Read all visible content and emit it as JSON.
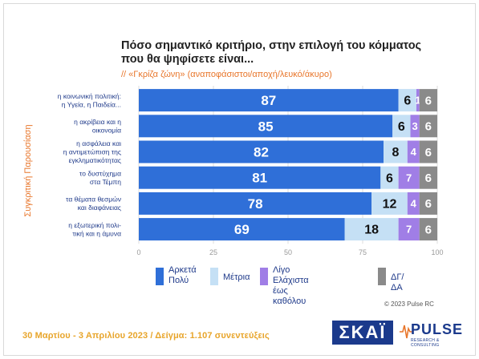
{
  "title": "Πόσο σημαντικό κριτήριο, στην επιλογή του κόμματος που θα ψηφίσετε είναι...",
  "subtitle": "// «Γκρίζα ζώνη» (αναποφάσιστοι/αποχή/λευκό/άκυρο)",
  "side_label": "Συγκριτική Παρουσίαση",
  "copyright": "© 2023 Pulse RC",
  "footer": "30 Μαρτίου - 3 Απριλίου 2023 / Δείγμα: 1.107 συνεντεύξεις",
  "logos": {
    "skai": "ΣΚΑΪ",
    "pulse": "PULSE",
    "pulse_sub": "RESEARCH & CONSULTING"
  },
  "colors": {
    "arketa": "#2f6fd8",
    "metria": "#c5e0f5",
    "ligo": "#a07ee6",
    "dgda": "#8a8a8a",
    "title": "#222222",
    "accent": "#e8762b",
    "footer": "#e8a52b",
    "legend_text": "#1f3a8a"
  },
  "legend": [
    {
      "label": "Αρκετά\nΠολύ",
      "color": "#2f6fd8"
    },
    {
      "label": "Μέτρια",
      "color": "#c5e0f5"
    },
    {
      "label": "Λίγο\nΕλάχιστα έως καθόλου",
      "color": "#a07ee6"
    },
    {
      "label": "ΔΓ/ΔΑ",
      "color": "#8a8a8a"
    }
  ],
  "chart_data": {
    "type": "bar",
    "orientation": "horizontal",
    "stacked": true,
    "categories": [
      "η κοινωνική πολιτική:\nη Υγεία, η Παιδεία...",
      "η ακρίβεια και η\nοικονομία",
      "η ασφάλεια και\nη αντιμετώπιση της\nεγκληματικότητας",
      "το δυστύχημα\nστα Τέμπη",
      "τα θέματα θεσμών\nκαι διαφάνειας",
      "η εξωτερική πολι-\nτική και η άμυνα"
    ],
    "series": [
      {
        "name": "Αρκετά Πολύ",
        "values": [
          87,
          85,
          82,
          81,
          78,
          69
        ]
      },
      {
        "name": "Μέτρια",
        "values": [
          6,
          6,
          8,
          6,
          12,
          18
        ]
      },
      {
        "name": "Λίγο Ελάχιστα έως καθόλου",
        "values": [
          1,
          3,
          4,
          7,
          4,
          7
        ]
      },
      {
        "name": "ΔΓ/ΔΑ",
        "values": [
          6,
          6,
          6,
          6,
          6,
          6
        ]
      }
    ],
    "xticks": [
      0,
      25,
      50,
      75,
      100
    ],
    "xlim": [
      0,
      100
    ],
    "grid": true,
    "legend_position": "bottom"
  }
}
